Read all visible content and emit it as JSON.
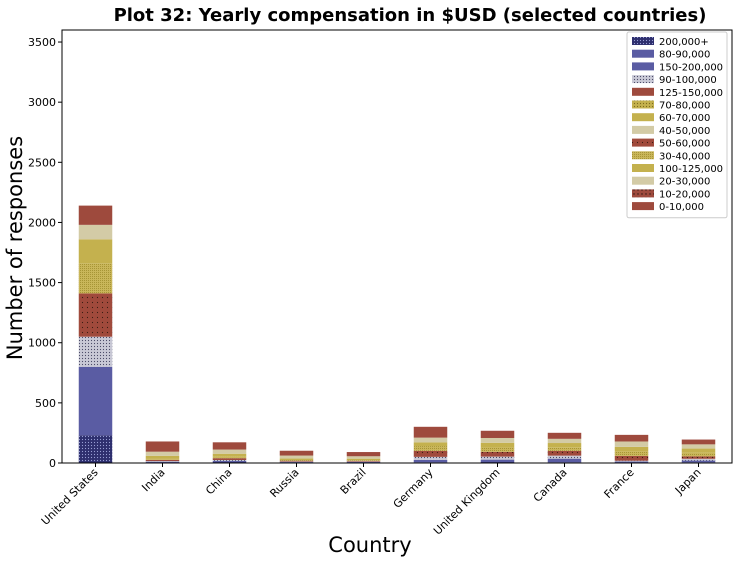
{
  "chart_data": {
    "type": "bar",
    "stacked": true,
    "title": "Plot 32: Yearly compensation in $USD (selected countries)",
    "xlabel": "Country",
    "ylabel": "Number of responses",
    "ylim": [
      0,
      3600
    ],
    "yticks": [
      0,
      500,
      1000,
      1500,
      2000,
      2500,
      3000,
      3500
    ],
    "legend_position": "top-right",
    "categories": [
      "United States",
      "India",
      "China",
      "Russia",
      "Brazil",
      "Germany",
      "United Kingdom",
      "Canada",
      "France",
      "Japan"
    ],
    "series": [
      {
        "name": "200,000+",
        "values": [
          230,
          3,
          8,
          3,
          4,
          6,
          8,
          6,
          2,
          5
        ]
      },
      {
        "name": "80-90,000",
        "values": [
          0,
          0,
          0,
          0,
          0,
          0,
          0,
          0,
          0,
          0
        ]
      },
      {
        "name": "150-200,000",
        "values": [
          570,
          8,
          10,
          5,
          5,
          20,
          20,
          30,
          10,
          15
        ]
      },
      {
        "name": "90-100,000",
        "values": [
          250,
          5,
          7,
          4,
          3,
          25,
          25,
          25,
          7,
          15
        ]
      },
      {
        "name": "125-150,000",
        "values": [
          0,
          0,
          0,
          0,
          0,
          0,
          0,
          0,
          0,
          0
        ]
      },
      {
        "name": "70-80,000",
        "values": [
          0,
          0,
          0,
          0,
          0,
          0,
          0,
          0,
          0,
          0
        ]
      },
      {
        "name": "60-70,000",
        "values": [
          0,
          0,
          0,
          0,
          0,
          0,
          0,
          0,
          0,
          0
        ]
      },
      {
        "name": "40-50,000",
        "values": [
          0,
          0,
          0,
          0,
          0,
          0,
          0,
          0,
          0,
          0
        ]
      },
      {
        "name": "50-60,000",
        "values": [
          360,
          10,
          15,
          7,
          6,
          50,
          40,
          40,
          40,
          20
        ]
      },
      {
        "name": "30-40,000",
        "values": [
          250,
          8,
          12,
          6,
          6,
          40,
          35,
          30,
          40,
          30
        ]
      },
      {
        "name": "100-125,000",
        "values": [
          200,
          25,
          25,
          12,
          12,
          30,
          40,
          35,
          35,
          35
        ]
      },
      {
        "name": "20-30,000",
        "values": [
          120,
          35,
          35,
          25,
          20,
          40,
          40,
          35,
          45,
          35
        ]
      },
      {
        "name": "10-20,000",
        "values": [
          0,
          0,
          0,
          0,
          0,
          0,
          0,
          0,
          0,
          0
        ]
      },
      {
        "name": "0-10,000",
        "values": [
          160,
          85,
          60,
          40,
          35,
          90,
          60,
          50,
          55,
          40
        ]
      },
      {
        "name": "200,000+ ",
        "values": [
          0,
          0,
          0,
          0,
          0,
          0,
          0,
          0,
          0,
          0
        ]
      },
      {
        "name": "80-90,000 ",
        "values": [
          0,
          0,
          0,
          0,
          0,
          0,
          0,
          0,
          0,
          0
        ]
      },
      {
        "name": "150-200,000 ",
        "values": [
          0,
          0,
          0,
          0,
          0,
          0,
          0,
          0,
          0,
          0
        ]
      }
    ]
  }
}
